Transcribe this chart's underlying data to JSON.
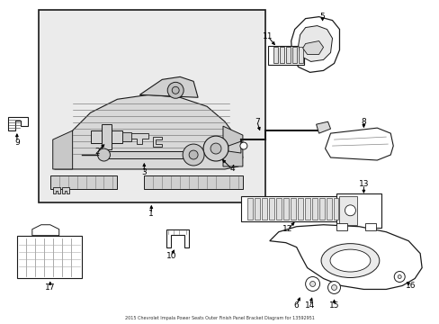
{
  "title": "2015 Chevrolet Impala Power Seats Outer Finish Panel Bracket Diagram for 13592951",
  "bg": "#ffffff",
  "lc": "#1a1a1a",
  "box_bg": "#ebebeb",
  "fig_width": 4.89,
  "fig_height": 3.6,
  "dpi": 100
}
